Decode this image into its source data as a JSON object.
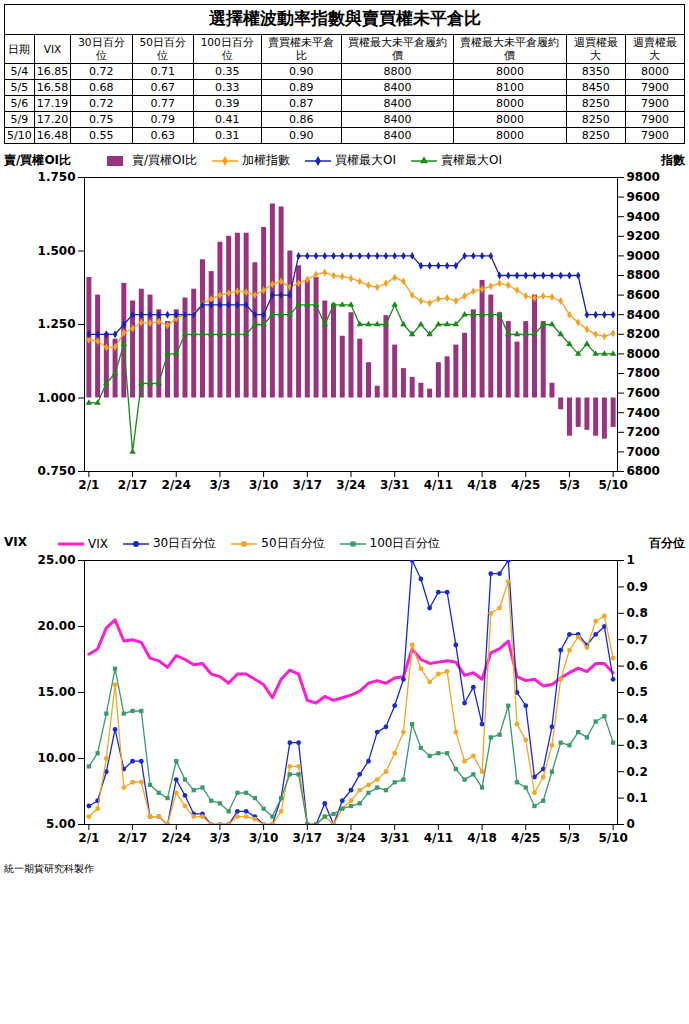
{
  "title": "選擇權波動率指數與賣買權未平倉比",
  "table": {
    "columns": [
      "日期",
      "VIX",
      "30日百分位",
      "50日百分位",
      "100日百分位",
      "賣買權未平倉比",
      "買權最大未平倉履約價",
      "賣權最大未平倉履約價",
      "週買權最大",
      "週賣權最大"
    ],
    "rows": [
      [
        "5/4",
        "16.85",
        "0.72",
        "0.71",
        "0.35",
        "0.90",
        "8800",
        "8000",
        "8350",
        "8000"
      ],
      [
        "5/5",
        "16.58",
        "0.68",
        "0.67",
        "0.33",
        "0.89",
        "8400",
        "8100",
        "8450",
        "7900"
      ],
      [
        "5/6",
        "17.19",
        "0.72",
        "0.77",
        "0.39",
        "0.87",
        "8400",
        "8000",
        "8250",
        "7900"
      ],
      [
        "5/9",
        "17.20",
        "0.75",
        "0.79",
        "0.41",
        "0.86",
        "8400",
        "8000",
        "8250",
        "7900"
      ],
      [
        "5/10",
        "16.48",
        "0.55",
        "0.63",
        "0.31",
        "0.90",
        "8400",
        "8000",
        "8250",
        "7900"
      ]
    ]
  },
  "chart_data": [
    {
      "type": "bar",
      "ylabel": "賣/買權OI比",
      "y2label": "指數",
      "categories": [
        "2/1",
        null,
        null,
        null,
        null,
        "2/17",
        null,
        null,
        null,
        null,
        "2/24",
        null,
        null,
        null,
        null,
        "3/3",
        null,
        null,
        null,
        null,
        "3/10",
        null,
        null,
        null,
        null,
        "3/17",
        null,
        null,
        null,
        null,
        "3/24",
        null,
        null,
        null,
        null,
        "3/31",
        null,
        null,
        null,
        null,
        "4/11",
        null,
        null,
        null,
        null,
        "4/18",
        null,
        null,
        null,
        null,
        "4/25",
        null,
        null,
        null,
        null,
        "5/3",
        null,
        null,
        null,
        null,
        "5/10"
      ],
      "ylim": [
        0.75,
        1.75
      ],
      "yticks": [
        {
          "value": 0.75,
          "label": "0.750"
        },
        {
          "value": 1,
          "label": "1.000"
        },
        {
          "value": 1.25,
          "label": "1.250"
        },
        {
          "value": 1.5,
          "label": "1.500"
        },
        {
          "value": 1.75,
          "label": "1.750"
        }
      ],
      "y2lim": [
        6800,
        9800
      ],
      "y2ticks": [
        6800,
        7000,
        7200,
        7400,
        7600,
        7800,
        8000,
        8200,
        8400,
        8600,
        8800,
        9000,
        9200,
        9400,
        9600,
        9800
      ],
      "series": [
        {
          "name": "賣/買權OI比",
          "type": "bar",
          "color": "#993380",
          "baseline": 1,
          "values": [
            1.41,
            1.35,
            1.22,
            1.2,
            1.39,
            1.33,
            1.37,
            1.35,
            1.3,
            1.26,
            1.3,
            1.34,
            1.37,
            1.47,
            1.43,
            1.53,
            1.55,
            1.56,
            1.56,
            1.46,
            1.58,
            1.66,
            1.65,
            1.5,
            1.45,
            1.4,
            1.41,
            1.33,
            1.32,
            1.21,
            1.29,
            1.2,
            1.12,
            1.04,
            1.28,
            1.18,
            1.1,
            1.07,
            1.05,
            1.03,
            1.12,
            1.14,
            1.18,
            1.22,
            1.3,
            1.4,
            1.35,
            1.29,
            1.26,
            1.19,
            1.26,
            1.35,
            1.26,
            1.05,
            0.96,
            0.87,
            0.9,
            0.89,
            0.87,
            0.86,
            0.9
          ]
        },
        {
          "name": "加權指數",
          "type": "line",
          "axis": "y2",
          "color": "#f5a020",
          "marker": "diamond",
          "values": [
            8145,
            8130,
            8065,
            8070,
            8215,
            8260,
            8320,
            8315,
            8330,
            8290,
            8360,
            8400,
            8410,
            8510,
            8560,
            8600,
            8620,
            8640,
            8630,
            8600,
            8650,
            8710,
            8740,
            8680,
            8720,
            8760,
            8810,
            8830,
            8800,
            8790,
            8770,
            8740,
            8700,
            8680,
            8720,
            8780,
            8740,
            8600,
            8540,
            8520,
            8560,
            8570,
            8540,
            8590,
            8640,
            8660,
            8690,
            8720,
            8700,
            8650,
            8590,
            8570,
            8590,
            8580,
            8540,
            8400,
            8320,
            8250,
            8200,
            8180,
            8210
          ]
        },
        {
          "name": "買權最大OI",
          "type": "line",
          "axis": "y2",
          "color": "#1a23b0",
          "marker": "diamond",
          "values": [
            8200,
            8200,
            8200,
            8200,
            8300,
            8400,
            8400,
            8400,
            8400,
            8400,
            8400,
            8400,
            8400,
            8500,
            8500,
            8500,
            8500,
            8500,
            8500,
            8400,
            8400,
            8600,
            8600,
            8600,
            9000,
            9000,
            9000,
            9000,
            9000,
            9000,
            9000,
            9000,
            9000,
            9000,
            9000,
            9000,
            9000,
            9000,
            8900,
            8900,
            8900,
            8900,
            8900,
            9000,
            9000,
            9000,
            9000,
            8800,
            8800,
            8800,
            8800,
            8800,
            8800,
            8800,
            8800,
            8800,
            8800,
            8400,
            8400,
            8400,
            8400
          ]
        },
        {
          "name": "賣權最大OI",
          "type": "line",
          "axis": "y2",
          "color": "#1a8a1a",
          "marker": "triangle",
          "values": [
            7500,
            7500,
            7700,
            7800,
            8100,
            7000,
            7700,
            7700,
            7700,
            8000,
            8000,
            8200,
            8200,
            8200,
            8200,
            8200,
            8200,
            8200,
            8200,
            8300,
            8300,
            8400,
            8400,
            8400,
            8500,
            8500,
            8500,
            8300,
            8500,
            8500,
            8500,
            8300,
            8300,
            8300,
            8300,
            8500,
            8300,
            8200,
            8300,
            8200,
            8300,
            8300,
            8300,
            8400,
            8400,
            8400,
            8400,
            8400,
            8200,
            8200,
            8200,
            8200,
            8300,
            8300,
            8200,
            8100,
            8000,
            8100,
            8000,
            8000,
            8000
          ]
        }
      ]
    },
    {
      "type": "line",
      "ylabel": "VIX",
      "y2label": "百分位",
      "categories": [
        "2/1",
        null,
        null,
        null,
        null,
        "2/17",
        null,
        null,
        null,
        null,
        "2/24",
        null,
        null,
        null,
        null,
        "3/3",
        null,
        null,
        null,
        null,
        "3/10",
        null,
        null,
        null,
        null,
        "3/17",
        null,
        null,
        null,
        null,
        "3/24",
        null,
        null,
        null,
        null,
        "3/31",
        null,
        null,
        null,
        null,
        "4/11",
        null,
        null,
        null,
        null,
        "4/18",
        null,
        null,
        null,
        null,
        "4/25",
        null,
        null,
        null,
        null,
        "5/3",
        null,
        null,
        null,
        null,
        "5/10"
      ],
      "ylim": [
        5,
        25
      ],
      "yticks": [
        {
          "value": 5,
          "label": "5.00"
        },
        {
          "value": 10,
          "label": "10.00"
        },
        {
          "value": 15,
          "label": "15.00"
        },
        {
          "value": 20,
          "label": "20.00"
        },
        {
          "value": 25,
          "label": "25.00"
        }
      ],
      "y2lim": [
        0,
        1
      ],
      "y2ticks": [
        0,
        0.1,
        0.2,
        0.3,
        0.4,
        0.5,
        0.6,
        0.7,
        0.8,
        0.9,
        1
      ],
      "series": [
        {
          "name": "VIX",
          "color": "#ff1fd0",
          "marker": "none",
          "values": [
            17.9,
            18.3,
            19.9,
            20.5,
            18.9,
            19.0,
            18.8,
            17.6,
            17.4,
            16.9,
            17.8,
            17.5,
            17.1,
            17.2,
            16.4,
            16.2,
            15.7,
            16.4,
            16.4,
            16.0,
            15.6,
            14.6,
            16.0,
            16.7,
            16.4,
            14.4,
            14.2,
            14.7,
            14.4,
            14.6,
            14.8,
            15.1,
            15.7,
            15.9,
            15.7,
            16.1,
            16.2,
            18.3,
            17.5,
            17.2,
            17.3,
            17.4,
            17.3,
            16.3,
            16.5,
            16.0,
            18.0,
            18.3,
            18.9,
            16.2,
            15.9,
            16.0,
            15.5,
            15.6,
            16.1,
            16.5,
            16.85,
            16.58,
            17.19,
            17.2,
            16.48
          ]
        },
        {
          "name": "30日百分位",
          "axis": "y2",
          "color": "#1a2ad0",
          "marker": "circle",
          "values": [
            0.07,
            0.09,
            0.2,
            0.36,
            0.21,
            0.24,
            0.24,
            0.03,
            0.03,
            0.0,
            0.17,
            0.11,
            0.04,
            0.04,
            0.0,
            0.0,
            0.0,
            0.05,
            0.05,
            0.03,
            0.0,
            0.0,
            0.1,
            0.31,
            0.31,
            0.0,
            0.0,
            0.08,
            0.0,
            0.09,
            0.13,
            0.19,
            0.24,
            0.35,
            0.37,
            0.45,
            0.55,
            1.0,
            0.93,
            0.82,
            0.88,
            0.88,
            0.68,
            0.46,
            0.52,
            0.38,
            0.95,
            0.95,
            1.0,
            0.5,
            0.45,
            0.18,
            0.21,
            0.37,
            0.66,
            0.72,
            0.72,
            0.68,
            0.72,
            0.75,
            0.55
          ]
        },
        {
          "name": "50日百分位",
          "axis": "y2",
          "color": "#f5a623",
          "marker": "circle",
          "values": [
            0.03,
            0.06,
            0.25,
            0.53,
            0.14,
            0.16,
            0.16,
            0.03,
            0.03,
            0.0,
            0.12,
            0.07,
            0.03,
            0.03,
            0.0,
            0.0,
            0.0,
            0.03,
            0.03,
            0.02,
            0.0,
            0.0,
            0.05,
            0.22,
            0.22,
            0.0,
            0.0,
            0.03,
            0.0,
            0.06,
            0.09,
            0.13,
            0.15,
            0.17,
            0.2,
            0.27,
            0.35,
            0.68,
            0.59,
            0.54,
            0.57,
            0.58,
            0.35,
            0.24,
            0.26,
            0.2,
            0.8,
            0.82,
            0.92,
            0.38,
            0.32,
            0.12,
            0.18,
            0.3,
            0.55,
            0.66,
            0.71,
            0.67,
            0.77,
            0.79,
            0.63
          ]
        },
        {
          "name": "100日百分位",
          "axis": "y2",
          "color": "#3a9a6a",
          "marker": "square",
          "values": [
            0.22,
            0.27,
            0.42,
            0.59,
            0.42,
            0.43,
            0.43,
            0.15,
            0.12,
            0.1,
            0.24,
            0.17,
            0.13,
            0.14,
            0.09,
            0.08,
            0.05,
            0.12,
            0.12,
            0.1,
            0.06,
            0.03,
            0.1,
            0.19,
            0.19,
            0.0,
            0.0,
            0.03,
            0.04,
            0.06,
            0.07,
            0.08,
            0.12,
            0.14,
            0.13,
            0.16,
            0.17,
            0.38,
            0.29,
            0.26,
            0.27,
            0.27,
            0.21,
            0.17,
            0.19,
            0.14,
            0.33,
            0.34,
            0.45,
            0.16,
            0.14,
            0.07,
            0.09,
            0.2,
            0.31,
            0.3,
            0.35,
            0.33,
            0.39,
            0.41,
            0.31
          ]
        }
      ]
    }
  ],
  "footer": "統一期貨研究科製作"
}
